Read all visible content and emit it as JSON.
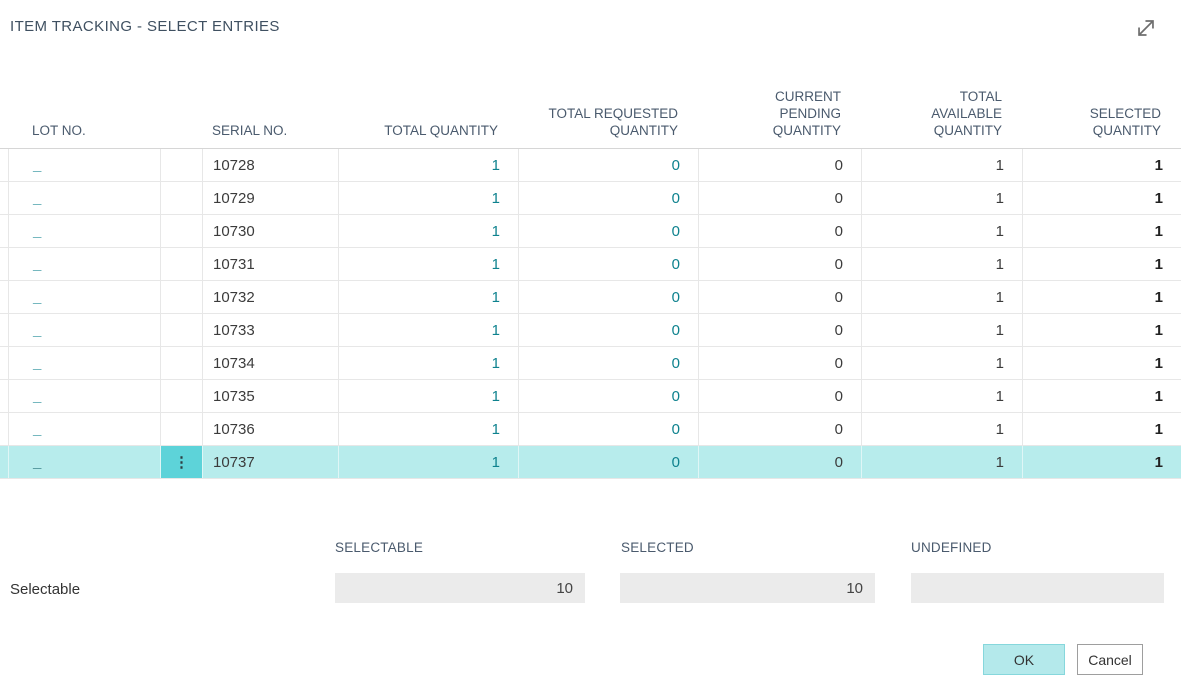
{
  "window": {
    "title": "ITEM TRACKING - SELECT ENTRIES"
  },
  "icons": {
    "expand": "diagonal-resize-arrow",
    "row_options": "⋮"
  },
  "colors": {
    "accent_link_teal": "#0e828e",
    "selected_row_bg": "#b7ecec",
    "selected_row_handle_bg": "#5dd3d9",
    "header_text": "#4a5a6d",
    "ok_button_bg": "#b4e9eb",
    "readonly_field_bg": "#ebebeb"
  },
  "table": {
    "columns": [
      {
        "id": "gutter",
        "label": ""
      },
      {
        "id": "lot_no",
        "label": "LOT NO."
      },
      {
        "id": "options",
        "label": ""
      },
      {
        "id": "serial_no",
        "label": "SERIAL NO."
      },
      {
        "id": "total_quantity",
        "label": "TOTAL QUANTITY"
      },
      {
        "id": "total_requested_quantity",
        "label": "TOTAL REQUESTED\nQUANTITY"
      },
      {
        "id": "current_pending_quantity",
        "label": "CURRENT\nPENDING\nQUANTITY"
      },
      {
        "id": "total_available_quantity",
        "label": "TOTAL\nAVAILABLE\nQUANTITY"
      },
      {
        "id": "selected_quantity",
        "label": "SELECTED\nQUANTITY"
      }
    ],
    "rows": [
      {
        "lot_no": "_",
        "serial_no": "10728",
        "total_quantity": "1",
        "total_requested_quantity": "0",
        "current_pending_quantity": "0",
        "total_available_quantity": "1",
        "selected_quantity": "1",
        "selected": false
      },
      {
        "lot_no": "_",
        "serial_no": "10729",
        "total_quantity": "1",
        "total_requested_quantity": "0",
        "current_pending_quantity": "0",
        "total_available_quantity": "1",
        "selected_quantity": "1",
        "selected": false
      },
      {
        "lot_no": "_",
        "serial_no": "10730",
        "total_quantity": "1",
        "total_requested_quantity": "0",
        "current_pending_quantity": "0",
        "total_available_quantity": "1",
        "selected_quantity": "1",
        "selected": false
      },
      {
        "lot_no": "_",
        "serial_no": "10731",
        "total_quantity": "1",
        "total_requested_quantity": "0",
        "current_pending_quantity": "0",
        "total_available_quantity": "1",
        "selected_quantity": "1",
        "selected": false
      },
      {
        "lot_no": "_",
        "serial_no": "10732",
        "total_quantity": "1",
        "total_requested_quantity": "0",
        "current_pending_quantity": "0",
        "total_available_quantity": "1",
        "selected_quantity": "1",
        "selected": false
      },
      {
        "lot_no": "_",
        "serial_no": "10733",
        "total_quantity": "1",
        "total_requested_quantity": "0",
        "current_pending_quantity": "0",
        "total_available_quantity": "1",
        "selected_quantity": "1",
        "selected": false
      },
      {
        "lot_no": "_",
        "serial_no": "10734",
        "total_quantity": "1",
        "total_requested_quantity": "0",
        "current_pending_quantity": "0",
        "total_available_quantity": "1",
        "selected_quantity": "1",
        "selected": false
      },
      {
        "lot_no": "_",
        "serial_no": "10735",
        "total_quantity": "1",
        "total_requested_quantity": "0",
        "current_pending_quantity": "0",
        "total_available_quantity": "1",
        "selected_quantity": "1",
        "selected": false
      },
      {
        "lot_no": "_",
        "serial_no": "10736",
        "total_quantity": "1",
        "total_requested_quantity": "0",
        "current_pending_quantity": "0",
        "total_available_quantity": "1",
        "selected_quantity": "1",
        "selected": false
      },
      {
        "lot_no": "_",
        "serial_no": "10737",
        "total_quantity": "1",
        "total_requested_quantity": "0",
        "current_pending_quantity": "0",
        "total_available_quantity": "1",
        "selected_quantity": "1",
        "selected": true
      }
    ]
  },
  "summary": {
    "row_label": "Selectable",
    "fields": [
      {
        "label": "SELECTABLE",
        "value": "10"
      },
      {
        "label": "SELECTED",
        "value": "10"
      },
      {
        "label": "UNDEFINED",
        "value": ""
      }
    ]
  },
  "buttons": {
    "ok": "OK",
    "cancel": "Cancel"
  }
}
